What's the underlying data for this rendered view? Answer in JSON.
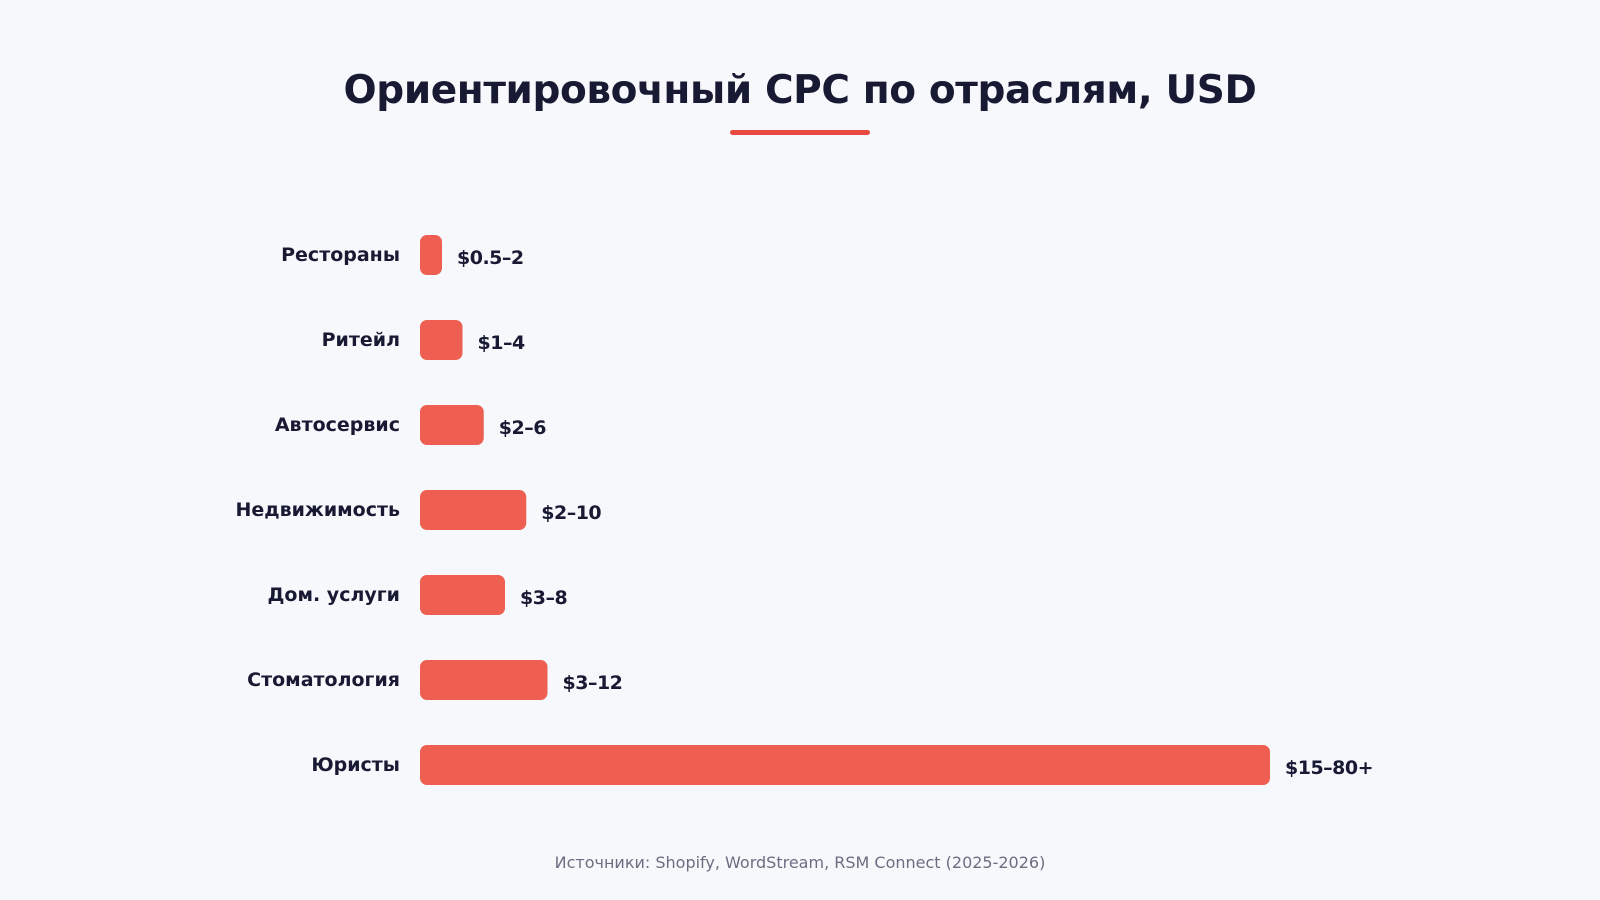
{
  "colors": {
    "background": "#f7f8fc",
    "bar": "#ee5f52",
    "accent": "#e84a42",
    "text": "#181a33",
    "muted": "#6b6e80"
  },
  "chart_data": {
    "type": "bar",
    "orientation": "horizontal",
    "title": "Ориентировочный CPC по отраслям, USD",
    "source": "Источники: Shopify, WordStream, RSM Connect (2025-2026)",
    "categories": [
      "Рестораны",
      "Ритейл",
      "Автосервис",
      "Недвижимость",
      "Дом. услуги",
      "Стоматология",
      "Юристы"
    ],
    "values": [
      2,
      4,
      6,
      10,
      8,
      12,
      80
    ],
    "value_labels": [
      "$0.5–2",
      "$1–4",
      "$2–6",
      "$2–10",
      "$3–8",
      "$3–12",
      "$15–80+"
    ],
    "xlim": [
      0,
      80
    ],
    "grid": false,
    "legend": "none"
  }
}
